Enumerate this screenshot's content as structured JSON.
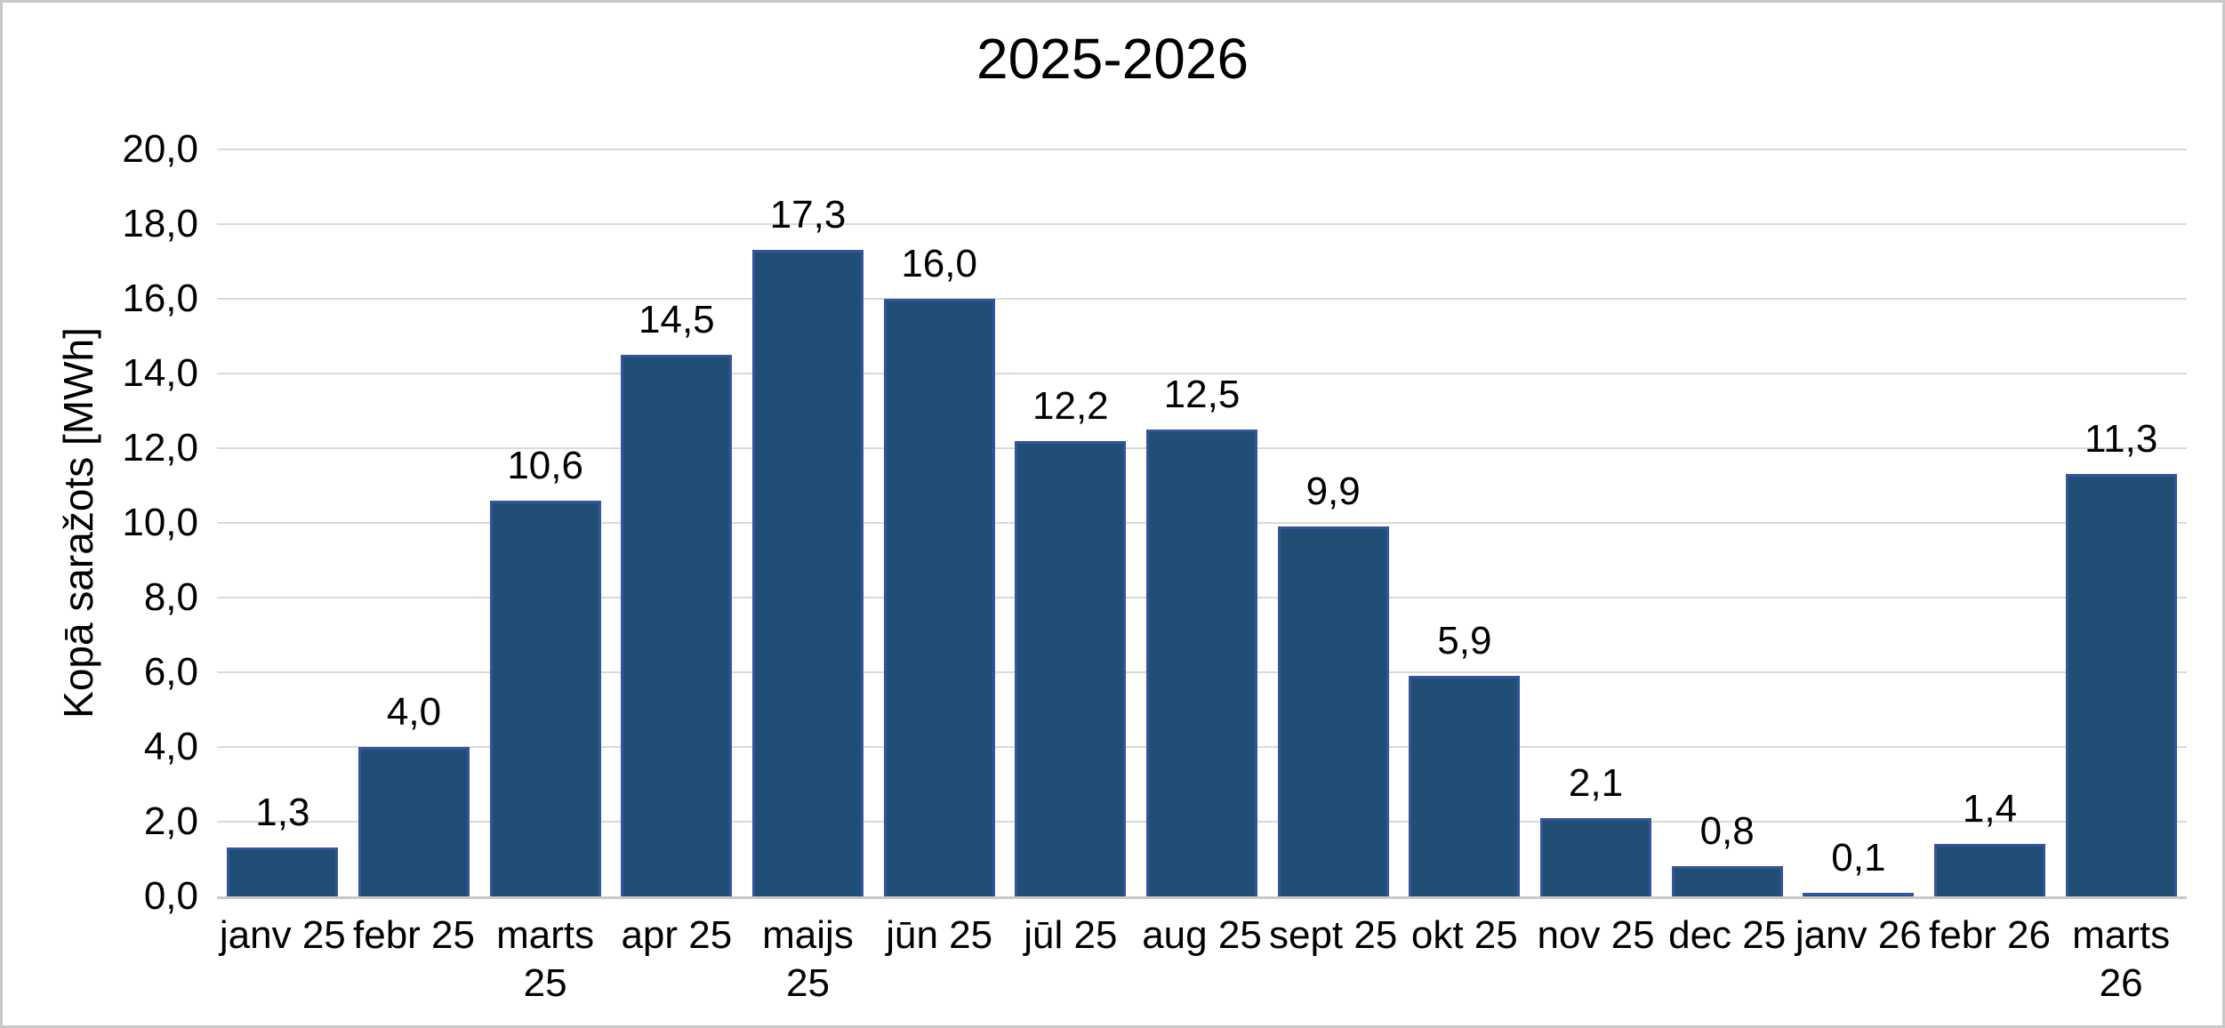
{
  "colors": {
    "background": "#ffffff",
    "frame_border": "#c8c8c8",
    "bar_fill": "#204e74",
    "bar_border": "#35549e",
    "gridline": "#dadada",
    "axis_line": "#c9c9c9",
    "text": "#000000"
  },
  "chart_data": {
    "type": "bar",
    "title": "2025-2026",
    "xlabel": "",
    "ylabel": "Kopā saražots [MWh]",
    "categories": [
      "janv 25",
      "febr 25",
      "marts 25",
      "apr 25",
      "maijs 25",
      "jūn 25",
      "jūl 25",
      "aug 25",
      "sept 25",
      "okt 25",
      "nov 25",
      "dec 25",
      "janv 26",
      "febr 26",
      "marts 26"
    ],
    "x_tick_display": [
      "janv 25",
      "febr 25",
      "marts\n25",
      "apr 25",
      "maijs\n25",
      "jūn 25",
      "jūl 25",
      "aug 25",
      "sept 25",
      "okt 25",
      "nov 25",
      "dec 25",
      "janv 26",
      "febr 26",
      "marts\n26"
    ],
    "values": [
      1.3,
      4.0,
      10.6,
      14.5,
      17.3,
      16.0,
      12.2,
      12.5,
      9.9,
      5.9,
      2.1,
      0.8,
      0.1,
      1.4,
      11.3
    ],
    "bar_labels": [
      "1,3",
      "4,0",
      "10,6",
      "14,5",
      "17,3",
      "16,0",
      "12,2",
      "12,5",
      "9,9",
      "5,9",
      "2,1",
      "0,8",
      "0,1",
      "1,4",
      "11,3"
    ],
    "ylim": [
      0,
      20
    ],
    "ytick_step": 2,
    "ytick_labels": [
      "0,0",
      "2,0",
      "4,0",
      "6,0",
      "8,0",
      "10,0",
      "12,0",
      "14,0",
      "16,0",
      "18,0",
      "20,0"
    ],
    "decimal_separator": ",",
    "grid": true,
    "legend": "none"
  }
}
